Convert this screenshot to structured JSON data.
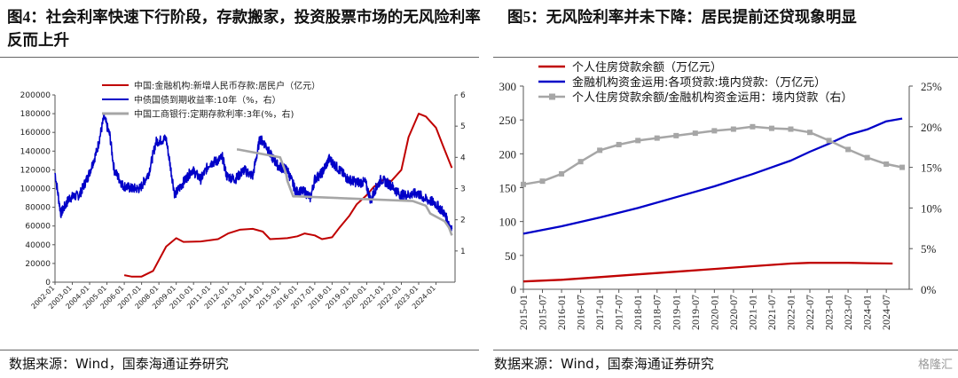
{
  "figures": {
    "left": {
      "label": "图4",
      "title": "：社会利率快速下行阶段，存款搬家，投资股票市场的无风险利率反而上升"
    },
    "right": {
      "label": "图5",
      "title": "：无风险利率并未下降：居民提前还贷现象明显"
    }
  },
  "source_left": "数据来源：Wind，国泰海通证券研究",
  "source_right": "数据来源：Wind，国泰海通证券研究",
  "watermark": "格隆汇",
  "colors": {
    "red": "#c00000",
    "blue": "#0000c8",
    "gray": "#a6a6a6"
  },
  "chart_data": [
    {
      "type": "line",
      "title": "",
      "x_ticks": [
        "2002-01",
        "2003-01",
        "2004-01",
        "2005-01",
        "2006-01",
        "2007-01",
        "2008-01",
        "2009-01",
        "2010-01",
        "2011-01",
        "2012-01",
        "2013-01",
        "2014-01",
        "2015-01",
        "2016-01",
        "2017-01",
        "2018-01",
        "2019-01",
        "2020-01",
        "2021-01",
        "2022-01",
        "2023-01",
        "2024-01"
      ],
      "ylim_left": [
        0,
        200000
      ],
      "y_ticks_left": [
        "0",
        "20000",
        "40000",
        "60000",
        "80000",
        "100000",
        "120000",
        "140000",
        "160000",
        "180000",
        "200000"
      ],
      "ylim_right": [
        0,
        6
      ],
      "y_ticks_right": [
        "1",
        "2",
        "3",
        "4",
        "5",
        "6"
      ],
      "legend_position": "top-center",
      "series": [
        {
          "name": "中国:金融机构:新增人民币存款:居民户（亿元）",
          "axis": "left",
          "points": [
            [
              "2006-01",
              7500
            ],
            [
              "2006-06",
              6000
            ],
            [
              "2007-01",
              6000
            ],
            [
              "2007-09",
              12000
            ],
            [
              "2008-06",
              38000
            ],
            [
              "2009-01",
              47000
            ],
            [
              "2009-06",
              43000
            ],
            [
              "2010-06",
              43500
            ],
            [
              "2011-06",
              46000
            ],
            [
              "2012-01",
              52000
            ],
            [
              "2012-09",
              56000
            ],
            [
              "2013-06",
              57000
            ],
            [
              "2014-01",
              54000
            ],
            [
              "2014-06",
              46000
            ],
            [
              "2015-01",
              46500
            ],
            [
              "2015-06",
              47000
            ],
            [
              "2016-01",
              49000
            ],
            [
              "2016-06",
              52000
            ],
            [
              "2017-01",
              50000
            ],
            [
              "2017-06",
              46000
            ],
            [
              "2018-01",
              48000
            ],
            [
              "2018-06",
              58000
            ],
            [
              "2019-01",
              71000
            ],
            [
              "2019-06",
              83000
            ],
            [
              "2020-01",
              93000
            ],
            [
              "2020-06",
              102000
            ],
            [
              "2021-01",
              110000
            ],
            [
              "2021-06",
              108000
            ],
            [
              "2022-01",
              120000
            ],
            [
              "2022-06",
              155000
            ],
            [
              "2023-01",
              180000
            ],
            [
              "2023-06",
              177000
            ],
            [
              "2024-01",
              165000
            ],
            [
              "2024-06",
              145000
            ],
            [
              "2024-12",
              122000
            ]
          ]
        },
        {
          "name": "中债国债到期收益率:10年（%，右）",
          "axis": "right",
          "points": [
            [
              "2002-01",
              3.5
            ],
            [
              "2002-05",
              2.2
            ],
            [
              "2002-11",
              2.7
            ],
            [
              "2003-06",
              2.8
            ],
            [
              "2003-12",
              3.4
            ],
            [
              "2004-06",
              4.2
            ],
            [
              "2004-11",
              5.3
            ],
            [
              "2005-03",
              4.7
            ],
            [
              "2005-06",
              3.6
            ],
            [
              "2005-12",
              3.1
            ],
            [
              "2006-06",
              3.0
            ],
            [
              "2006-12",
              3.0
            ],
            [
              "2007-06",
              3.5
            ],
            [
              "2007-11",
              4.5
            ],
            [
              "2008-06",
              4.6
            ],
            [
              "2008-10",
              3.4
            ],
            [
              "2008-12",
              2.8
            ],
            [
              "2009-06",
              3.2
            ],
            [
              "2009-12",
              3.6
            ],
            [
              "2010-06",
              3.3
            ],
            [
              "2010-12",
              3.8
            ],
            [
              "2011-06",
              3.9
            ],
            [
              "2011-09",
              4.0
            ],
            [
              "2011-12",
              3.4
            ],
            [
              "2012-06",
              3.3
            ],
            [
              "2012-12",
              3.6
            ],
            [
              "2013-06",
              3.4
            ],
            [
              "2013-11",
              4.6
            ],
            [
              "2014-03",
              4.4
            ],
            [
              "2014-06",
              4.1
            ],
            [
              "2014-12",
              3.7
            ],
            [
              "2015-06",
              3.6
            ],
            [
              "2015-12",
              2.9
            ],
            [
              "2016-06",
              2.9
            ],
            [
              "2016-10",
              2.7
            ],
            [
              "2017-01",
              3.3
            ],
            [
              "2017-06",
              3.5
            ],
            [
              "2017-11",
              3.95
            ],
            [
              "2018-06",
              3.6
            ],
            [
              "2018-12",
              3.3
            ],
            [
              "2019-06",
              3.2
            ],
            [
              "2019-12",
              3.2
            ],
            [
              "2020-04",
              2.6
            ],
            [
              "2020-06",
              2.9
            ],
            [
              "2020-11",
              3.3
            ],
            [
              "2021-06",
              3.1
            ],
            [
              "2021-12",
              2.8
            ],
            [
              "2022-06",
              2.8
            ],
            [
              "2022-12",
              2.85
            ],
            [
              "2023-06",
              2.65
            ],
            [
              "2023-12",
              2.55
            ],
            [
              "2024-06",
              2.25
            ],
            [
              "2024-12",
              1.7
            ]
          ]
        },
        {
          "name": "中国工商银行:定期存款利率:3年(%，右)",
          "axis": "right",
          "points": [
            [
              "2012-07",
              4.25
            ],
            [
              "2012-08",
              4.25
            ],
            [
              "2015-01",
              4.0
            ],
            [
              "2015-03",
              3.75
            ],
            [
              "2015-05",
              3.5
            ],
            [
              "2015-06",
              3.25
            ],
            [
              "2015-08",
              3.0
            ],
            [
              "2015-10",
              2.75
            ],
            [
              "2016-01",
              2.75
            ],
            [
              "2022-09",
              2.6
            ],
            [
              "2023-06",
              2.45
            ],
            [
              "2023-09",
              2.2
            ],
            [
              "2024-07",
              1.95
            ],
            [
              "2024-10",
              1.75
            ],
            [
              "2024-12",
              1.5
            ]
          ]
        }
      ]
    },
    {
      "type": "line",
      "title": "",
      "x_ticks": [
        "2015-01",
        "2015-07",
        "2016-01",
        "2016-07",
        "2017-01",
        "2017-07",
        "2018-01",
        "2018-07",
        "2019-01",
        "2019-07",
        "2020-01",
        "2020-07",
        "2021-01",
        "2021-07",
        "2022-01",
        "2022-07",
        "2023-01",
        "2023-07",
        "2024-01",
        "2024-07"
      ],
      "ylim_left": [
        0,
        300
      ],
      "y_ticks_left": [
        "0",
        "50",
        "100",
        "150",
        "200",
        "250",
        "300"
      ],
      "ylim_right": [
        0,
        25
      ],
      "y_ticks_right": [
        "0%",
        "5%",
        "10%",
        "15%",
        "20%",
        "25%"
      ],
      "legend_position": "top-left",
      "series": [
        {
          "name": "个人住房贷款余额（万亿元）",
          "axis": "left",
          "points": [
            [
              "2015-01",
              11.5
            ],
            [
              "2016-01",
              14
            ],
            [
              "2017-01",
              18
            ],
            [
              "2018-01",
              22
            ],
            [
              "2019-01",
              26
            ],
            [
              "2020-01",
              30
            ],
            [
              "2021-01",
              34
            ],
            [
              "2022-01",
              38
            ],
            [
              "2022-07",
              39
            ],
            [
              "2023-01",
              39
            ],
            [
              "2023-07",
              39
            ],
            [
              "2024-01",
              38.5
            ],
            [
              "2024-09",
              38
            ]
          ]
        },
        {
          "name": "金融机构资金运用:各项贷款:境内贷款:（万亿元）",
          "axis": "left",
          "points": [
            [
              "2015-01",
              82
            ],
            [
              "2016-01",
              93
            ],
            [
              "2017-01",
              106
            ],
            [
              "2018-01",
              120
            ],
            [
              "2019-01",
              136
            ],
            [
              "2020-01",
              152
            ],
            [
              "2021-01",
              170
            ],
            [
              "2021-07",
              180
            ],
            [
              "2022-01",
              190
            ],
            [
              "2022-07",
              203
            ],
            [
              "2023-01",
              215
            ],
            [
              "2023-07",
              228
            ],
            [
              "2024-01",
              236
            ],
            [
              "2024-07",
              248
            ],
            [
              "2024-12",
              252
            ]
          ]
        },
        {
          "name": "个人住房贷款余额/金融机构资金运用：境内贷款（右）",
          "axis": "right",
          "points": [
            [
              "2015-01",
              12.9
            ],
            [
              "2015-07",
              13.3
            ],
            [
              "2016-01",
              14.2
            ],
            [
              "2016-07",
              15.7
            ],
            [
              "2017-01",
              17.1
            ],
            [
              "2017-07",
              17.8
            ],
            [
              "2018-01",
              18.3
            ],
            [
              "2018-07",
              18.6
            ],
            [
              "2019-01",
              18.9
            ],
            [
              "2019-07",
              19.2
            ],
            [
              "2020-01",
              19.5
            ],
            [
              "2020-07",
              19.7
            ],
            [
              "2021-01",
              20.0
            ],
            [
              "2021-07",
              19.8
            ],
            [
              "2022-01",
              19.7
            ],
            [
              "2022-07",
              19.3
            ],
            [
              "2023-01",
              18.3
            ],
            [
              "2023-07",
              17.2
            ],
            [
              "2024-01",
              16.2
            ],
            [
              "2024-07",
              15.4
            ],
            [
              "2024-12",
              15.0
            ]
          ]
        }
      ]
    }
  ]
}
